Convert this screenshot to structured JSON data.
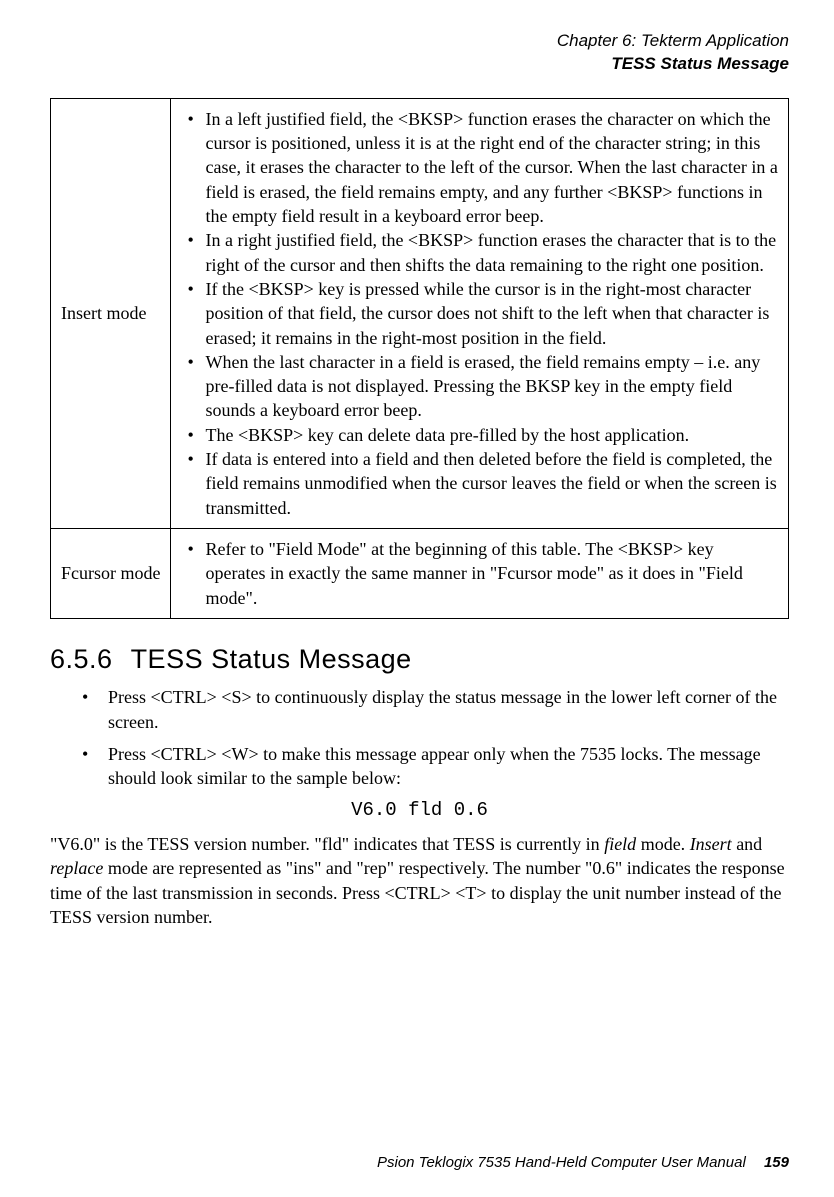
{
  "header": {
    "chapter": "Chapter 6: Tekterm Application",
    "subtitle": "TESS Status Message"
  },
  "table": {
    "rows": [
      {
        "label": "Insert mode",
        "items": [
          "In a left justified field, the <BKSP> function erases the character on which the cursor is positioned, unless it is at the right end of the character string; in this case, it erases the character to the left of the cursor. When the last character in a field is erased, the field remains empty, and any further <BKSP> functions in the empty field result in a keyboard error beep.",
          "In a right justified field, the <BKSP> function erases the character that is to the right of the cursor and then shifts the data remaining to the right one position.",
          "If the <BKSP> key is pressed while the cursor is in the right-most character position of that field, the cursor does not shift to the left when that character is erased; it remains in the right-most position in the field.",
          "When the last character in a field is erased, the field remains empty – i.e. any pre-filled data is not displayed. Pressing the BKSP key in the empty field sounds a keyboard error beep.",
          "The <BKSP> key can delete data pre-filled by the host application.",
          "If data is entered into a field and then deleted before the field is completed, the field remains unmodified when the cursor leaves the field or when the screen is transmitted."
        ]
      },
      {
        "label": "Fcursor mode",
        "items": [
          "Refer to \"Field Mode\" at the beginning of this table. The <BKSP> key operates in exactly the same manner in \"Fcursor mode\" as it does in \"Field mode\"."
        ]
      }
    ]
  },
  "section": {
    "number": "6.5.6",
    "title": "TESS Status Message",
    "bullets": [
      "Press  <CTRL> <S> to continuously display the status message in the lower left corner of the screen.",
      "Press  <CTRL> <W>  to make this message appear only when the 7535 locks. The message should look similar to the sample below:"
    ],
    "code": "V6.0 fld 0.6"
  },
  "paragraph": {
    "p1a": "\"V6.0\" is the TESS version number. \"fld\" indicates that TESS is currently in ",
    "p1b": "field",
    "p1c": " mode. ",
    "p1d": "Insert",
    "p1e": " and ",
    "p1f": "replace",
    "p1g": " mode are represented as \"ins\" and \"rep\" respectively. The number \"0.6\" indicates the response time of the last transmission in seconds. Press <CTRL> <T>  to display the unit number instead of the TESS version number."
  },
  "footer": {
    "text": "Psion Teklogix 7535 Hand-Held Computer User Manual",
    "page": "159"
  }
}
